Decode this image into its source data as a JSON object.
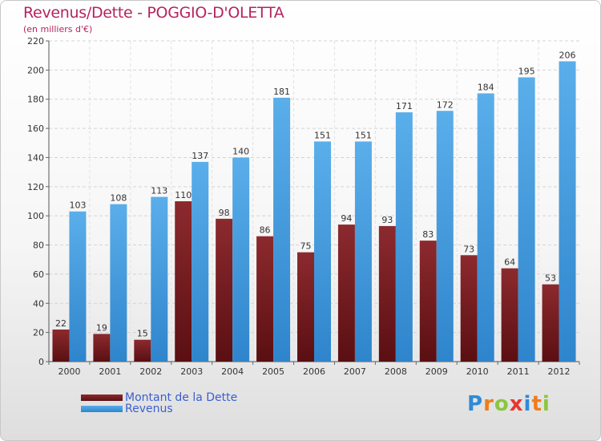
{
  "chart_data": {
    "type": "bar",
    "title": "Revenus/Dette - POGGIO-D'OLETTA",
    "subtitle": "(en milliers d'€)",
    "categories": [
      "2000",
      "2001",
      "2002",
      "2003",
      "2004",
      "2005",
      "2006",
      "2007",
      "2008",
      "2009",
      "2010",
      "2011",
      "2012"
    ],
    "series": [
      {
        "name": "Montant de la Dette",
        "color": "#7a1c20",
        "values": [
          22,
          19,
          15,
          110,
          98,
          86,
          75,
          94,
          93,
          83,
          73,
          64,
          53
        ]
      },
      {
        "name": "Revenus",
        "color": "#3d97dd",
        "values": [
          103,
          108,
          113,
          137,
          140,
          181,
          151,
          151,
          171,
          172,
          184,
          195,
          206
        ]
      }
    ],
    "y_ticks": [
      0,
      20,
      40,
      60,
      80,
      100,
      120,
      140,
      160,
      180,
      200,
      220
    ],
    "ylim": [
      0,
      220
    ],
    "grid": true,
    "legend_position": "bottom-left"
  },
  "branding": {
    "logo_text": "Proxiti",
    "logo_letters": [
      "P",
      "r",
      "o",
      "x",
      "i",
      "t",
      "i"
    ],
    "logo_colors": [
      "#2e8bd6",
      "#f07c1c",
      "#8cc63f",
      "#e8352e",
      "#2e8bd6",
      "#f07c1c",
      "#8cc63f"
    ]
  }
}
